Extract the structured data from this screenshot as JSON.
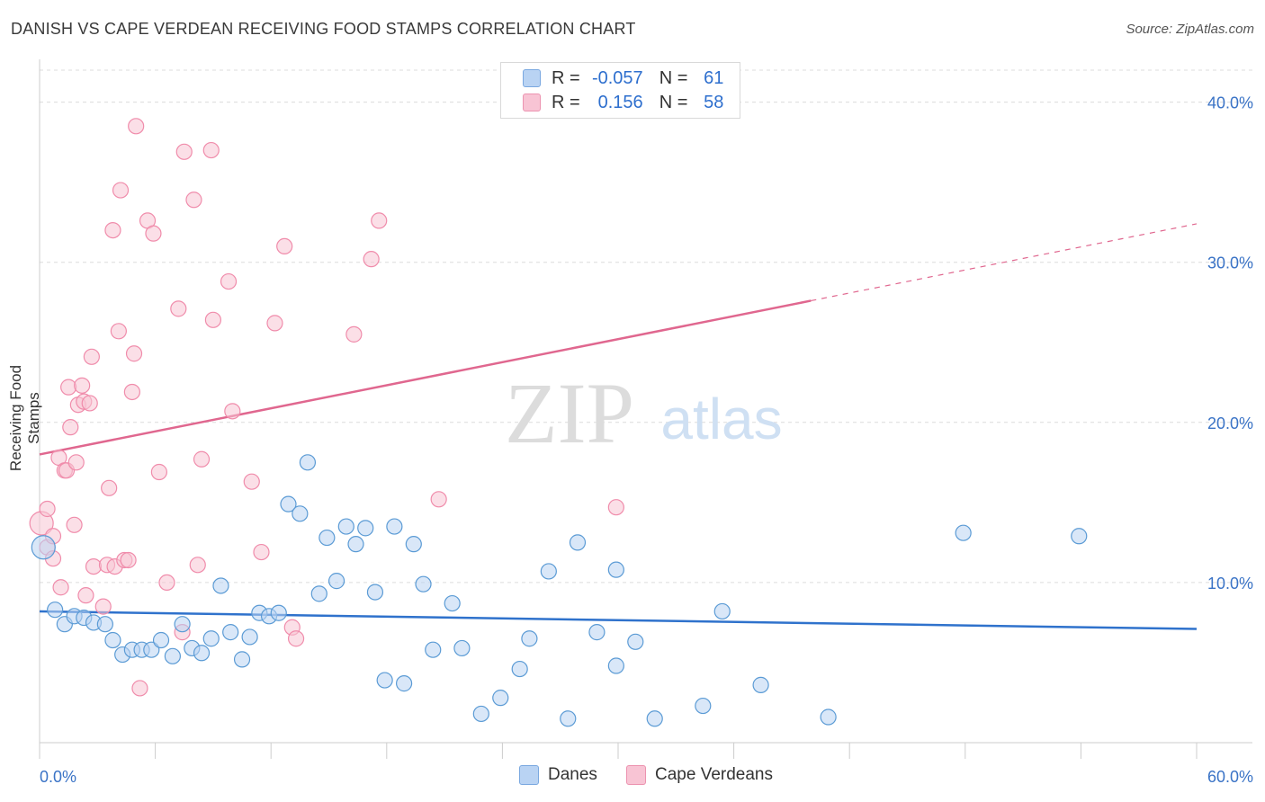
{
  "title": "DANISH VS CAPE VERDEAN RECEIVING FOOD STAMPS CORRELATION CHART",
  "source": "Source: ZipAtlas.com",
  "watermark": {
    "zip": "ZIP",
    "atlas": "atlas"
  },
  "legend": {
    "rows": [
      {
        "r_label": "R =",
        "r_value": "-0.057",
        "n_label": "N =",
        "n_value": "61",
        "color": "#5b9bd5"
      },
      {
        "r_label": "R =",
        "r_value": "0.156",
        "n_label": "N =",
        "n_value": "58",
        "color": "#f08cab"
      }
    ]
  },
  "bottom_legend": [
    "Danes",
    "Cape Verdeans"
  ],
  "chart_data": {
    "type": "scatter",
    "title": "DANISH VS CAPE VERDEAN RECEIVING FOOD STAMPS CORRELATION CHART",
    "xlabel": "",
    "ylabel": "Receiving Food Stamps",
    "xlim": [
      0,
      60
    ],
    "ylim": [
      0,
      42
    ],
    "x_tick_labels": [
      "0.0%",
      "60.0%"
    ],
    "y_ticks": [
      10,
      20,
      30,
      40
    ],
    "y_tick_labels": [
      "10.0%",
      "20.0%",
      "30.0%",
      "40.0%"
    ],
    "grid": true,
    "legend_position": "top-center",
    "colors": {
      "danes": "#5b9bd5",
      "danes_fill": "#b9d3f3",
      "danes_line": "#2f72cc",
      "cape": "#f08cab",
      "cape_fill": "#f8c4d4",
      "cape_line": "#e0678f",
      "tick_label": "#3a73c6"
    },
    "series": [
      {
        "name": "Danes",
        "r": -0.057,
        "n": 61,
        "trend": {
          "x0": 0,
          "y0": 8.2,
          "x1": 60,
          "y1": 7.1
        },
        "points": [
          [
            0.2,
            12.2
          ],
          [
            0.8,
            8.3
          ],
          [
            1.3,
            7.4
          ],
          [
            1.8,
            7.9
          ],
          [
            2.3,
            7.8
          ],
          [
            2.8,
            7.5
          ],
          [
            3.4,
            7.4
          ],
          [
            3.8,
            6.4
          ],
          [
            4.3,
            5.5
          ],
          [
            4.8,
            5.8
          ],
          [
            5.3,
            5.8
          ],
          [
            5.8,
            5.8
          ],
          [
            6.3,
            6.4
          ],
          [
            6.9,
            5.4
          ],
          [
            7.4,
            7.4
          ],
          [
            7.9,
            5.9
          ],
          [
            8.4,
            5.6
          ],
          [
            8.9,
            6.5
          ],
          [
            9.4,
            9.8
          ],
          [
            9.9,
            6.9
          ],
          [
            10.5,
            5.2
          ],
          [
            10.9,
            6.6
          ],
          [
            11.4,
            8.1
          ],
          [
            11.9,
            7.9
          ],
          [
            12.4,
            8.1
          ],
          [
            12.9,
            14.9
          ],
          [
            13.5,
            14.3
          ],
          [
            13.9,
            17.5
          ],
          [
            14.5,
            9.3
          ],
          [
            14.9,
            12.8
          ],
          [
            15.4,
            10.1
          ],
          [
            15.9,
            13.5
          ],
          [
            16.4,
            12.4
          ],
          [
            16.9,
            13.4
          ],
          [
            17.4,
            9.4
          ],
          [
            17.9,
            3.9
          ],
          [
            18.4,
            13.5
          ],
          [
            18.9,
            3.7
          ],
          [
            19.4,
            12.4
          ],
          [
            19.9,
            9.9
          ],
          [
            20.4,
            5.8
          ],
          [
            21.4,
            8.7
          ],
          [
            21.9,
            5.9
          ],
          [
            22.9,
            1.8
          ],
          [
            23.9,
            2.8
          ],
          [
            24.9,
            4.6
          ],
          [
            25.4,
            6.5
          ],
          [
            26.4,
            10.7
          ],
          [
            27.4,
            1.5
          ],
          [
            27.9,
            12.5
          ],
          [
            28.9,
            6.9
          ],
          [
            29.9,
            4.8
          ],
          [
            29.9,
            10.8
          ],
          [
            30.9,
            6.3
          ],
          [
            31.9,
            1.5
          ],
          [
            34.4,
            2.3
          ],
          [
            35.4,
            8.2
          ],
          [
            37.4,
            3.6
          ],
          [
            40.9,
            1.6
          ],
          [
            47.9,
            13.1
          ],
          [
            53.9,
            12.9
          ]
        ]
      },
      {
        "name": "Cape Verdeans",
        "r": 0.156,
        "n": 58,
        "trend": {
          "x0": 0,
          "y0": 18.0,
          "x1": 40,
          "y1": 27.6,
          "dash_x1": 60,
          "dash_y1": 32.4
        },
        "points": [
          [
            0.1,
            13.7
          ],
          [
            0.4,
            12.2
          ],
          [
            0.4,
            14.6
          ],
          [
            0.7,
            11.5
          ],
          [
            0.7,
            12.9
          ],
          [
            1.0,
            17.8
          ],
          [
            1.1,
            9.7
          ],
          [
            1.3,
            17.0
          ],
          [
            1.4,
            17.0
          ],
          [
            1.5,
            22.2
          ],
          [
            1.6,
            19.7
          ],
          [
            1.8,
            13.6
          ],
          [
            1.9,
            17.5
          ],
          [
            2.0,
            21.1
          ],
          [
            2.2,
            22.3
          ],
          [
            2.3,
            21.3
          ],
          [
            2.4,
            9.2
          ],
          [
            2.6,
            21.2
          ],
          [
            2.7,
            24.1
          ],
          [
            2.8,
            11.0
          ],
          [
            3.3,
            8.5
          ],
          [
            3.5,
            11.1
          ],
          [
            3.6,
            15.9
          ],
          [
            3.8,
            32.0
          ],
          [
            3.9,
            11.0
          ],
          [
            4.1,
            25.7
          ],
          [
            4.2,
            34.5
          ],
          [
            4.4,
            11.4
          ],
          [
            4.6,
            11.4
          ],
          [
            4.8,
            21.9
          ],
          [
            4.9,
            24.3
          ],
          [
            5.0,
            38.5
          ],
          [
            5.2,
            3.4
          ],
          [
            5.6,
            32.6
          ],
          [
            5.9,
            31.8
          ],
          [
            6.2,
            16.9
          ],
          [
            6.6,
            10.0
          ],
          [
            7.2,
            27.1
          ],
          [
            7.4,
            6.9
          ],
          [
            7.5,
            36.9
          ],
          [
            8.0,
            33.9
          ],
          [
            8.2,
            11.1
          ],
          [
            8.4,
            17.7
          ],
          [
            8.9,
            37.0
          ],
          [
            9.0,
            26.4
          ],
          [
            9.8,
            28.8
          ],
          [
            10.0,
            20.7
          ],
          [
            11.0,
            16.3
          ],
          [
            11.5,
            11.9
          ],
          [
            12.2,
            26.2
          ],
          [
            12.7,
            31.0
          ],
          [
            13.1,
            7.2
          ],
          [
            13.3,
            6.5
          ],
          [
            16.3,
            25.5
          ],
          [
            17.2,
            30.2
          ],
          [
            17.6,
            32.6
          ],
          [
            20.7,
            15.2
          ],
          [
            29.9,
            14.7
          ]
        ]
      }
    ]
  }
}
